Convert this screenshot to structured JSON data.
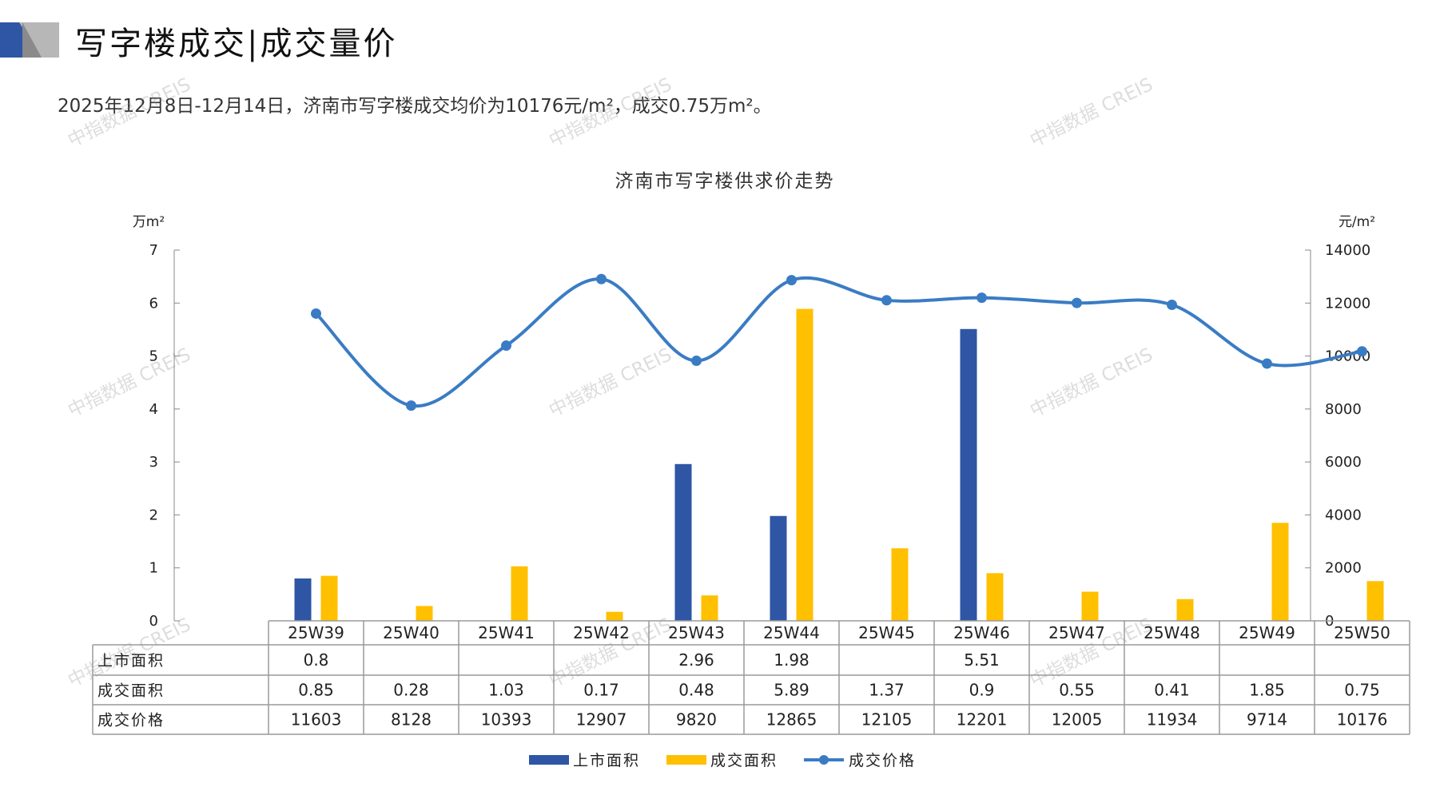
{
  "header": {
    "title": "写字楼成交|成交量价",
    "subtitle": "2025年12月8日-12月14日，济南市写字楼成交均价为10176元/m²，成交0.75万m²。"
  },
  "watermark": "中指数据 CREIS",
  "colors": {
    "listed": "#2E56A5",
    "deal_area": "#FFC000",
    "deal_price": "#3A7CC4",
    "logo_dark": "#2E56A5",
    "logo_grey": "#B7B7B7"
  },
  "chart_data": {
    "type": "bar",
    "title": "济南市写字楼供求价走势",
    "ylabel_left": "万m²",
    "ylabel_right": "元/m²",
    "ylim_left": [
      0,
      7
    ],
    "ylim_right": [
      0,
      14000
    ],
    "yticks_left": [
      "0",
      "1",
      "2",
      "3",
      "4",
      "5",
      "6",
      "7"
    ],
    "yticks_right": [
      "0",
      "2000",
      "4000",
      "6000",
      "8000",
      "10000",
      "12000",
      "14000"
    ],
    "categories": [
      "25W39",
      "25W40",
      "25W41",
      "25W42",
      "25W43",
      "25W44",
      "25W45",
      "25W46",
      "25W47",
      "25W48",
      "25W49",
      "25W50"
    ],
    "series": [
      {
        "name": "上市面积",
        "type": "bar",
        "axis": "left",
        "values": [
          0.8,
          null,
          null,
          null,
          2.96,
          1.98,
          null,
          5.51,
          null,
          null,
          null,
          null
        ],
        "labels": [
          "0.8",
          "",
          "",
          "",
          "2.96",
          "1.98",
          "",
          "5.51",
          "",
          "",
          "",
          ""
        ]
      },
      {
        "name": "成交面积",
        "type": "bar",
        "axis": "left",
        "values": [
          0.85,
          0.28,
          1.03,
          0.17,
          0.48,
          5.89,
          1.37,
          0.9,
          0.55,
          0.41,
          1.85,
          0.75
        ],
        "labels": [
          "0.85",
          "0.28",
          "1.03",
          "0.17",
          "0.48",
          "5.89",
          "1.37",
          "0.9",
          "0.55",
          "0.41",
          "1.85",
          "0.75"
        ]
      },
      {
        "name": "成交价格",
        "type": "line",
        "axis": "right",
        "values": [
          11603,
          8128,
          10393,
          12907,
          9820,
          12865,
          12105,
          12201,
          12005,
          11934,
          9714,
          10176
        ],
        "labels": [
          "11603",
          "8128",
          "10393",
          "12907",
          "9820",
          "12865",
          "12105",
          "12201",
          "12005",
          "11934",
          "9714",
          "10176"
        ]
      }
    ],
    "legend": "bottom"
  }
}
